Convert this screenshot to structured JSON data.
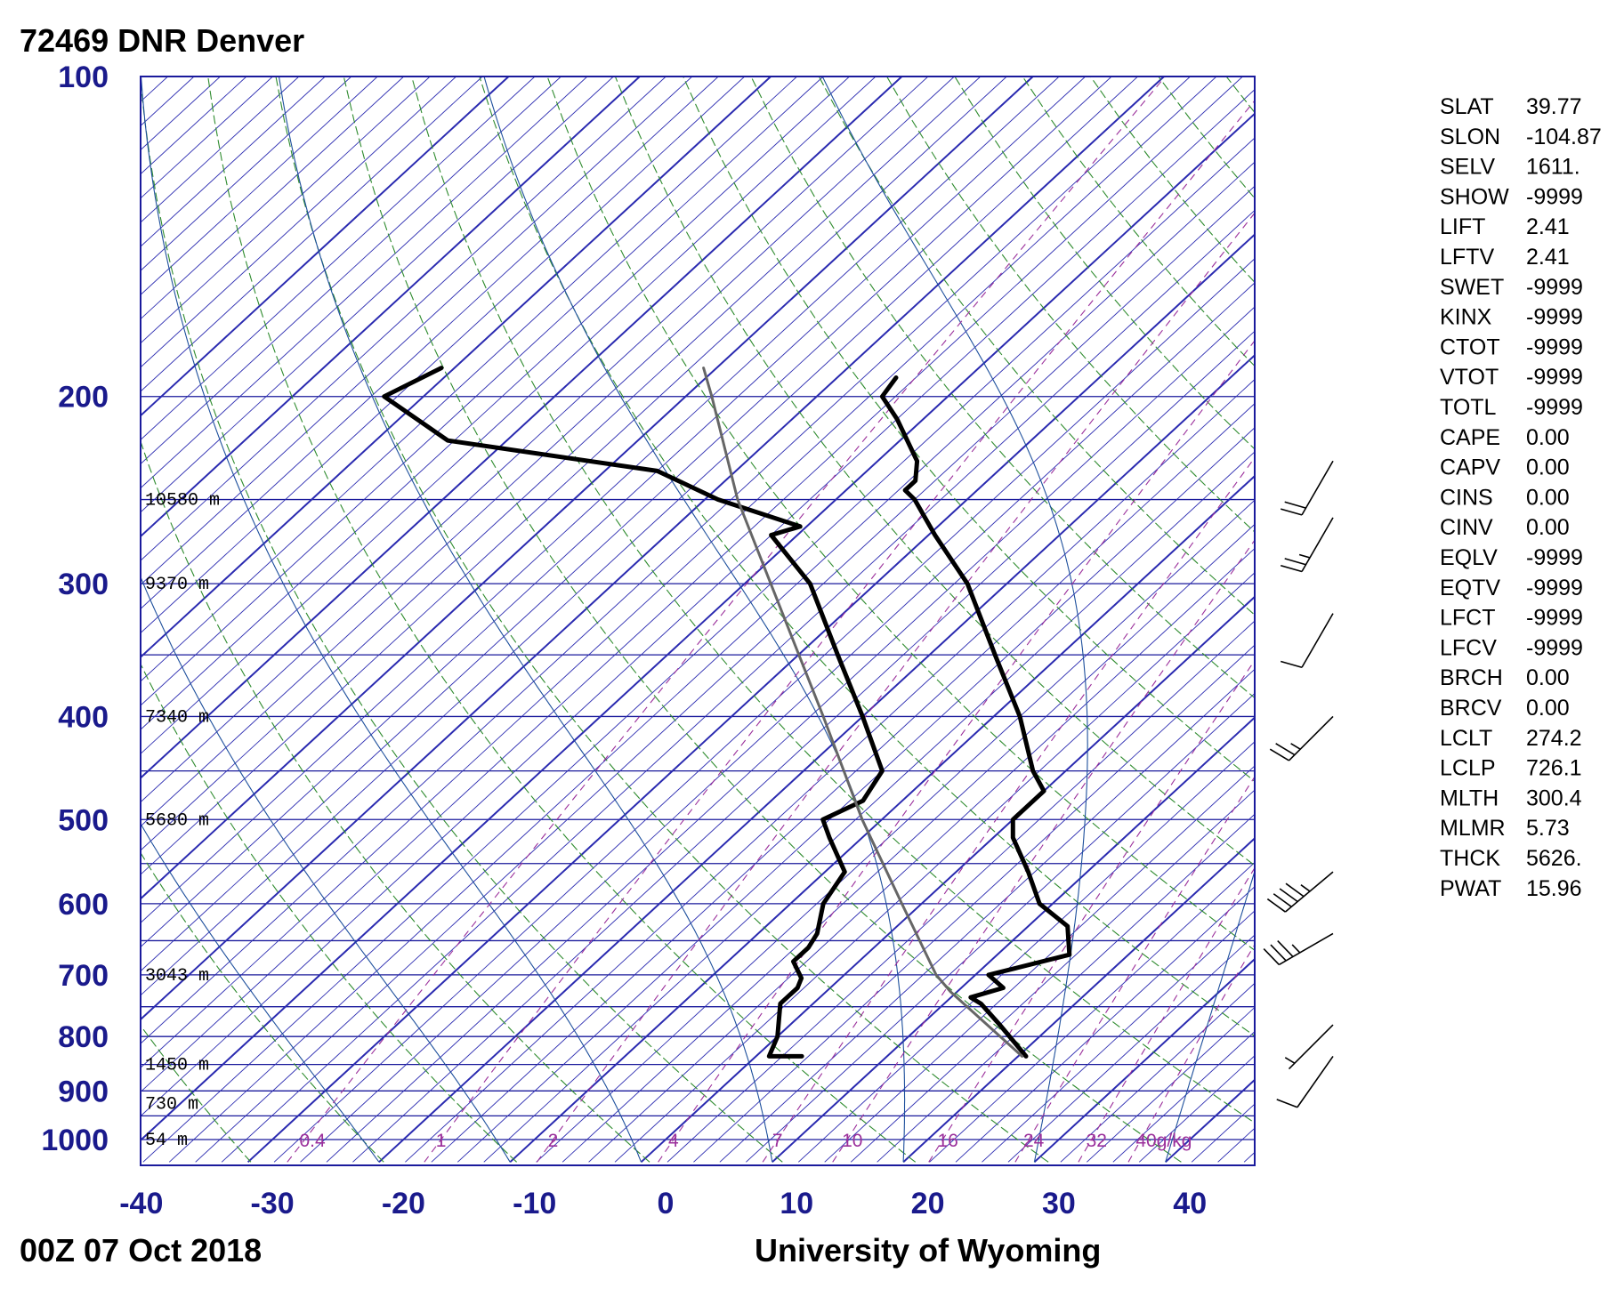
{
  "header": {
    "station": "72469 DNR Denver",
    "time": "00Z 07 Oct 2018",
    "source": "University of Wyoming"
  },
  "colors": {
    "frame": "#1a1a9c",
    "isobar": "#1a1a9c",
    "isotherm": "#2a2ab0",
    "dry_adiabat": "#2e8b2e",
    "moist_adiabat": "#1d4f9c",
    "mixing_ratio": "#9b2f9b",
    "temperature": "#000000",
    "dewpoint": "#000000",
    "parcel": "#666666",
    "axis_label": "#1a1a8c",
    "mixing_label": "#9b2f9b"
  },
  "indices": [
    {
      "key": "SLAT",
      "value": "39.77"
    },
    {
      "key": "SLON",
      "value": "-104.87"
    },
    {
      "key": "SELV",
      "value": "1611."
    },
    {
      "key": "SHOW",
      "value": "-9999"
    },
    {
      "key": "LIFT",
      "value": "2.41"
    },
    {
      "key": "LFTV",
      "value": "2.41"
    },
    {
      "key": "SWET",
      "value": "-9999"
    },
    {
      "key": "KINX",
      "value": "-9999"
    },
    {
      "key": "CTOT",
      "value": "-9999"
    },
    {
      "key": "VTOT",
      "value": "-9999"
    },
    {
      "key": "TOTL",
      "value": "-9999"
    },
    {
      "key": "CAPE",
      "value": "0.00"
    },
    {
      "key": "CAPV",
      "value": "0.00"
    },
    {
      "key": "CINS",
      "value": "0.00"
    },
    {
      "key": "CINV",
      "value": "0.00"
    },
    {
      "key": "EQLV",
      "value": "-9999"
    },
    {
      "key": "EQTV",
      "value": "-9999"
    },
    {
      "key": "LFCT",
      "value": "-9999"
    },
    {
      "key": "LFCV",
      "value": "-9999"
    },
    {
      "key": "BRCH",
      "value": "0.00"
    },
    {
      "key": "BRCV",
      "value": "0.00"
    },
    {
      "key": "LCLT",
      "value": "274.2"
    },
    {
      "key": "LCLP",
      "value": "726.1"
    },
    {
      "key": "MLTH",
      "value": "300.4"
    },
    {
      "key": "MLMR",
      "value": "5.73"
    },
    {
      "key": "THCK",
      "value": "5626."
    },
    {
      "key": "PWAT",
      "value": "15.96"
    }
  ],
  "chart_data": {
    "type": "skew-t log-p",
    "x_axis": {
      "unit": "°C",
      "ticks": [
        "-40",
        "-30",
        "-20",
        "-10",
        "0",
        "10",
        "20",
        "30",
        "40"
      ],
      "range": [
        -40,
        45
      ]
    },
    "y_axis": {
      "unit": "hPa",
      "scale": "log",
      "ticks": [
        "100",
        "200",
        "300",
        "400",
        "500",
        "600",
        "700",
        "800",
        "900",
        "1000"
      ],
      "range": [
        1050,
        100
      ]
    },
    "isobars_hPa": [
      100,
      200,
      250,
      300,
      350,
      400,
      450,
      500,
      550,
      600,
      650,
      700,
      750,
      800,
      850,
      900,
      950,
      1000
    ],
    "height_labels": [
      {
        "p": 250,
        "label": "10580 m"
      },
      {
        "p": 300,
        "label": "9370 m"
      },
      {
        "p": 400,
        "label": "7340 m"
      },
      {
        "p": 500,
        "label": "5680 m"
      },
      {
        "p": 700,
        "label": "3043 m"
      },
      {
        "p": 850,
        "label": "1450 m"
      },
      {
        "p": 925,
        "label": "730 m"
      },
      {
        "p": 1000,
        "label": "54 m"
      }
    ],
    "mixing_ratio_labels": [
      "0.4",
      "1",
      "2",
      "4",
      "7",
      "10",
      "16",
      "24",
      "32",
      "40g/kg"
    ],
    "mixing_ratios_gkg": [
      0.4,
      1,
      2,
      4,
      7,
      10,
      16,
      24,
      32,
      40
    ],
    "series": [
      {
        "name": "temperature",
        "points": [
          {
            "p": 835,
            "t": 20.6
          },
          {
            "p": 780,
            "t": 16.0
          },
          {
            "p": 745,
            "t": 12.8
          },
          {
            "p": 735,
            "t": 11.5
          },
          {
            "p": 720,
            "t": 13.2
          },
          {
            "p": 700,
            "t": 11.0
          },
          {
            "p": 690,
            "t": 12.5
          },
          {
            "p": 670,
            "t": 15.5
          },
          {
            "p": 630,
            "t": 13.0
          },
          {
            "p": 600,
            "t": 9.0
          },
          {
            "p": 560,
            "t": 5.5
          },
          {
            "p": 520,
            "t": 1.5
          },
          {
            "p": 500,
            "t": 0.0
          },
          {
            "p": 470,
            "t": 0.0
          },
          {
            "p": 450,
            "t": -2.5
          },
          {
            "p": 400,
            "t": -8.0
          },
          {
            "p": 350,
            "t": -15.0
          },
          {
            "p": 300,
            "t": -23.0
          },
          {
            "p": 270,
            "t": -29.5
          },
          {
            "p": 250,
            "t": -34.0
          },
          {
            "p": 245,
            "t": -35.5
          },
          {
            "p": 240,
            "t": -35.5
          },
          {
            "p": 230,
            "t": -37.0
          },
          {
            "p": 210,
            "t": -42.0
          },
          {
            "p": 200,
            "t": -45.0
          },
          {
            "p": 192,
            "t": -45.5
          }
        ]
      },
      {
        "name": "dewpoint",
        "points": [
          {
            "p": 835,
            "t": 3.5
          },
          {
            "p": 835,
            "t": 1.0
          },
          {
            "p": 800,
            "t": 0.0
          },
          {
            "p": 745,
            "t": -2.5
          },
          {
            "p": 735,
            "t": -2.5
          },
          {
            "p": 720,
            "t": -2.5
          },
          {
            "p": 705,
            "t": -3.0
          },
          {
            "p": 680,
            "t": -5.0
          },
          {
            "p": 660,
            "t": -5.0
          },
          {
            "p": 640,
            "t": -5.5
          },
          {
            "p": 600,
            "t": -7.5
          },
          {
            "p": 560,
            "t": -8.5
          },
          {
            "p": 520,
            "t": -12.5
          },
          {
            "p": 500,
            "t": -14.5
          },
          {
            "p": 480,
            "t": -13.0
          },
          {
            "p": 450,
            "t": -14.0
          },
          {
            "p": 400,
            "t": -20.0
          },
          {
            "p": 350,
            "t": -27.0
          },
          {
            "p": 300,
            "t": -35.0
          },
          {
            "p": 270,
            "t": -42.0
          },
          {
            "p": 265,
            "t": -40.5
          },
          {
            "p": 250,
            "t": -49.0
          },
          {
            "p": 235,
            "t": -56.0
          },
          {
            "p": 220,
            "t": -74.5
          },
          {
            "p": 200,
            "t": -83.0
          },
          {
            "p": 188,
            "t": -81.0
          }
        ]
      },
      {
        "name": "parcel",
        "points": [
          {
            "p": 835,
            "t": 20.3
          },
          {
            "p": 726.1,
            "t": 9.5
          },
          {
            "p": 700,
            "t": 7.0
          },
          {
            "p": 600,
            "t": -1.5
          },
          {
            "p": 500,
            "t": -11.5
          },
          {
            "p": 400,
            "t": -23.0
          },
          {
            "p": 300,
            "t": -38.0
          },
          {
            "p": 250,
            "t": -47.5
          },
          {
            "p": 200,
            "t": -58.0
          },
          {
            "p": 188,
            "t": -61.0
          }
        ]
      }
    ],
    "wind_barbs": [
      {
        "p": 835,
        "dir_deg": 215,
        "speed_kt": 10
      },
      {
        "p": 780,
        "dir_deg": 225,
        "speed_kt": 5
      },
      {
        "p": 640,
        "dir_deg": 240,
        "speed_kt": 35
      },
      {
        "p": 560,
        "dir_deg": 230,
        "speed_kt": 45
      },
      {
        "p": 400,
        "dir_deg": 225,
        "speed_kt": 25
      },
      {
        "p": 320,
        "dir_deg": 210,
        "speed_kt": 10
      },
      {
        "p": 260,
        "dir_deg": 210,
        "speed_kt": 25
      },
      {
        "p": 230,
        "dir_deg": 210,
        "speed_kt": 20
      }
    ]
  }
}
